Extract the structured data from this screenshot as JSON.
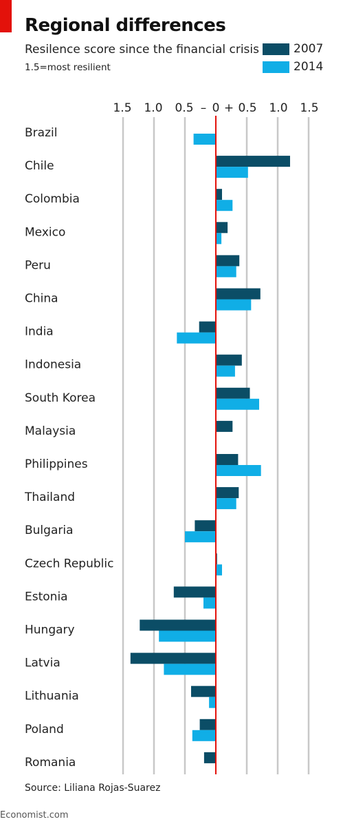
{
  "header": {
    "title": "Regional differences",
    "subtitle": "Resilence score since the financial crisis",
    "note": "1.5=most resilient"
  },
  "legend": [
    {
      "label": "2007",
      "color": "#0b4d66"
    },
    {
      "label": "2014",
      "color": "#10aee6"
    }
  ],
  "footer": {
    "source": "Source: Liliana Rojas-Suarez",
    "brand": "Economist.com"
  },
  "colors": {
    "accent": "#e3120b",
    "zero_line": "#e3120b",
    "grid": "#c8c8c8"
  },
  "chart_data": {
    "type": "bar",
    "orientation": "horizontal",
    "axis_tick_labels": [
      "1.5",
      "1.0",
      "0.5",
      "–",
      "0",
      "+",
      "0.5",
      "1.0",
      "1.5"
    ],
    "xlim": [
      -1.5,
      1.5
    ],
    "gridlines": [
      -1.5,
      -1.0,
      -0.5,
      0.5,
      1.0,
      1.5
    ],
    "categories": [
      "Brazil",
      "Chile",
      "Colombia",
      "Mexico",
      "Peru",
      "China",
      "India",
      "Indonesia",
      "South Korea",
      "Malaysia",
      "Philippines",
      "Thailand",
      "Bulgaria",
      "Czech Republic",
      "Estonia",
      "Hungary",
      "Latvia",
      "Lithuania",
      "Poland",
      "Romania"
    ],
    "series": [
      {
        "name": "2007",
        "values": [
          null,
          1.2,
          0.1,
          0.19,
          0.38,
          0.72,
          -0.27,
          0.42,
          0.55,
          0.27,
          0.36,
          0.37,
          -0.34,
          0.02,
          -0.68,
          -1.23,
          -1.38,
          -0.4,
          -0.26,
          -0.19
        ]
      },
      {
        "name": "2014",
        "values": [
          -0.36,
          0.52,
          0.27,
          0.09,
          0.33,
          0.57,
          -0.63,
          0.31,
          0.7,
          null,
          0.73,
          0.33,
          -0.5,
          0.1,
          -0.2,
          -0.92,
          -0.84,
          -0.11,
          -0.38,
          null
        ]
      }
    ]
  }
}
